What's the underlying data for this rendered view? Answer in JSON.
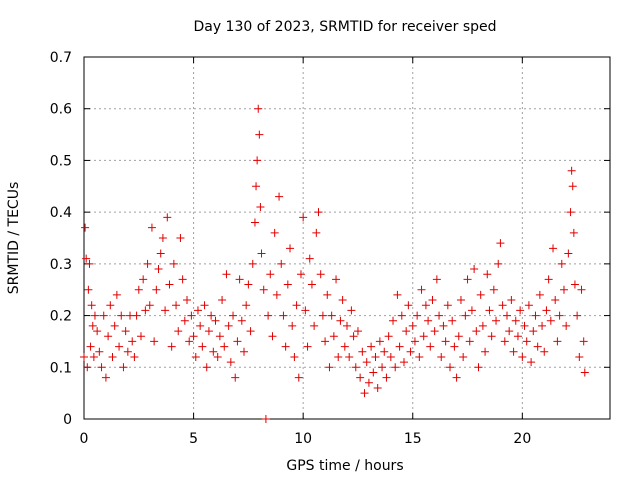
{
  "chart_data": {
    "type": "scatter",
    "title": "Day 130 of 2023, SRMTID for receiver sped",
    "xlabel": "GPS time / hours",
    "ylabel": "SRMTID / TECUs",
    "xlim": [
      0,
      24
    ],
    "ylim": [
      0,
      0.7
    ],
    "xticks": [
      0,
      5,
      10,
      15,
      20
    ],
    "yticks": [
      0,
      0.1,
      0.2,
      0.3,
      0.4,
      0.5,
      0.6,
      0.7
    ],
    "xtick_labels": [
      "0",
      "5",
      "10",
      "15",
      "20"
    ],
    "ytick_labels": [
      "0",
      "0.1",
      "0.2",
      "0.3",
      "0.4",
      "0.5",
      "0.6",
      "0.7"
    ],
    "grid": true,
    "marker": "+",
    "color": "#e00000",
    "series": [
      {
        "name": "SRMTID",
        "points": [
          [
            0.0,
            0.12
          ],
          [
            0.05,
            0.37
          ],
          [
            0.1,
            0.31
          ],
          [
            0.15,
            0.1
          ],
          [
            0.2,
            0.25
          ],
          [
            0.25,
            0.3
          ],
          [
            0.3,
            0.14
          ],
          [
            0.35,
            0.22
          ],
          [
            0.4,
            0.18
          ],
          [
            0.45,
            0.12
          ],
          [
            0.5,
            0.2
          ],
          [
            0.6,
            0.17
          ],
          [
            0.7,
            0.13
          ],
          [
            0.8,
            0.1
          ],
          [
            0.9,
            0.2
          ],
          [
            1.0,
            0.08
          ],
          [
            1.1,
            0.16
          ],
          [
            1.2,
            0.22
          ],
          [
            1.3,
            0.12
          ],
          [
            1.4,
            0.18
          ],
          [
            1.5,
            0.24
          ],
          [
            1.6,
            0.14
          ],
          [
            1.7,
            0.2
          ],
          [
            1.8,
            0.1
          ],
          [
            1.9,
            0.17
          ],
          [
            2.0,
            0.13
          ],
          [
            2.1,
            0.2
          ],
          [
            2.2,
            0.15
          ],
          [
            2.3,
            0.12
          ],
          [
            2.4,
            0.2
          ],
          [
            2.5,
            0.25
          ],
          [
            2.6,
            0.16
          ],
          [
            2.7,
            0.27
          ],
          [
            2.8,
            0.21
          ],
          [
            2.9,
            0.3
          ],
          [
            3.0,
            0.22
          ],
          [
            3.1,
            0.37
          ],
          [
            3.2,
            0.15
          ],
          [
            3.3,
            0.25
          ],
          [
            3.4,
            0.29
          ],
          [
            3.5,
            0.32
          ],
          [
            3.6,
            0.35
          ],
          [
            3.7,
            0.21
          ],
          [
            3.8,
            0.39
          ],
          [
            3.9,
            0.26
          ],
          [
            4.0,
            0.14
          ],
          [
            4.1,
            0.3
          ],
          [
            4.2,
            0.22
          ],
          [
            4.3,
            0.17
          ],
          [
            4.4,
            0.35
          ],
          [
            4.5,
            0.27
          ],
          [
            4.6,
            0.19
          ],
          [
            4.7,
            0.23
          ],
          [
            4.8,
            0.15
          ],
          [
            4.9,
            0.2
          ],
          [
            5.0,
            0.16
          ],
          [
            5.1,
            0.12
          ],
          [
            5.2,
            0.21
          ],
          [
            5.3,
            0.18
          ],
          [
            5.4,
            0.14
          ],
          [
            5.5,
            0.22
          ],
          [
            5.6,
            0.1
          ],
          [
            5.7,
            0.17
          ],
          [
            5.8,
            0.2
          ],
          [
            5.9,
            0.13
          ],
          [
            6.0,
            0.19
          ],
          [
            6.1,
            0.12
          ],
          [
            6.2,
            0.16
          ],
          [
            6.3,
            0.23
          ],
          [
            6.4,
            0.14
          ],
          [
            6.5,
            0.28
          ],
          [
            6.6,
            0.18
          ],
          [
            6.7,
            0.11
          ],
          [
            6.8,
            0.2
          ],
          [
            6.9,
            0.08
          ],
          [
            7.0,
            0.15
          ],
          [
            7.1,
            0.27
          ],
          [
            7.2,
            0.19
          ],
          [
            7.3,
            0.13
          ],
          [
            7.4,
            0.22
          ],
          [
            7.5,
            0.26
          ],
          [
            7.6,
            0.17
          ],
          [
            7.7,
            0.3
          ],
          [
            7.8,
            0.38
          ],
          [
            7.85,
            0.45
          ],
          [
            7.9,
            0.5
          ],
          [
            7.95,
            0.6
          ],
          [
            8.0,
            0.55
          ],
          [
            8.05,
            0.41
          ],
          [
            8.1,
            0.32
          ],
          [
            8.2,
            0.25
          ],
          [
            8.3,
            0.0
          ],
          [
            8.4,
            0.2
          ],
          [
            8.5,
            0.28
          ],
          [
            8.6,
            0.16
          ],
          [
            8.7,
            0.36
          ],
          [
            8.8,
            0.24
          ],
          [
            8.9,
            0.43
          ],
          [
            9.0,
            0.3
          ],
          [
            9.1,
            0.2
          ],
          [
            9.2,
            0.14
          ],
          [
            9.3,
            0.26
          ],
          [
            9.4,
            0.33
          ],
          [
            9.5,
            0.18
          ],
          [
            9.6,
            0.12
          ],
          [
            9.7,
            0.22
          ],
          [
            9.8,
            0.08
          ],
          [
            9.9,
            0.28
          ],
          [
            10.0,
            0.39
          ],
          [
            10.1,
            0.21
          ],
          [
            10.2,
            0.14
          ],
          [
            10.3,
            0.31
          ],
          [
            10.4,
            0.26
          ],
          [
            10.5,
            0.18
          ],
          [
            10.6,
            0.36
          ],
          [
            10.7,
            0.4
          ],
          [
            10.8,
            0.28
          ],
          [
            10.9,
            0.2
          ],
          [
            11.0,
            0.15
          ],
          [
            11.1,
            0.24
          ],
          [
            11.2,
            0.1
          ],
          [
            11.3,
            0.2
          ],
          [
            11.4,
            0.16
          ],
          [
            11.5,
            0.27
          ],
          [
            11.6,
            0.12
          ],
          [
            11.7,
            0.19
          ],
          [
            11.8,
            0.23
          ],
          [
            11.9,
            0.14
          ],
          [
            12.0,
            0.18
          ],
          [
            12.1,
            0.12
          ],
          [
            12.2,
            0.21
          ],
          [
            12.3,
            0.16
          ],
          [
            12.4,
            0.1
          ],
          [
            12.5,
            0.17
          ],
          [
            12.6,
            0.08
          ],
          [
            12.7,
            0.13
          ],
          [
            12.8,
            0.05
          ],
          [
            12.9,
            0.11
          ],
          [
            13.0,
            0.07
          ],
          [
            13.1,
            0.14
          ],
          [
            13.2,
            0.09
          ],
          [
            13.3,
            0.12
          ],
          [
            13.4,
            0.06
          ],
          [
            13.5,
            0.15
          ],
          [
            13.6,
            0.1
          ],
          [
            13.7,
            0.13
          ],
          [
            13.8,
            0.08
          ],
          [
            13.9,
            0.16
          ],
          [
            14.0,
            0.12
          ],
          [
            14.1,
            0.19
          ],
          [
            14.2,
            0.1
          ],
          [
            14.3,
            0.24
          ],
          [
            14.4,
            0.14
          ],
          [
            14.5,
            0.2
          ],
          [
            14.6,
            0.11
          ],
          [
            14.7,
            0.17
          ],
          [
            14.8,
            0.22
          ],
          [
            14.9,
            0.13
          ],
          [
            15.0,
            0.18
          ],
          [
            15.1,
            0.15
          ],
          [
            15.2,
            0.2
          ],
          [
            15.3,
            0.12
          ],
          [
            15.4,
            0.25
          ],
          [
            15.5,
            0.16
          ],
          [
            15.6,
            0.22
          ],
          [
            15.7,
            0.19
          ],
          [
            15.8,
            0.14
          ],
          [
            15.9,
            0.23
          ],
          [
            16.0,
            0.17
          ],
          [
            16.1,
            0.27
          ],
          [
            16.2,
            0.2
          ],
          [
            16.3,
            0.12
          ],
          [
            16.4,
            0.18
          ],
          [
            16.5,
            0.15
          ],
          [
            16.6,
            0.22
          ],
          [
            16.7,
            0.1
          ],
          [
            16.8,
            0.19
          ],
          [
            16.9,
            0.14
          ],
          [
            17.0,
            0.08
          ],
          [
            17.1,
            0.16
          ],
          [
            17.2,
            0.23
          ],
          [
            17.3,
            0.12
          ],
          [
            17.4,
            0.2
          ],
          [
            17.5,
            0.27
          ],
          [
            17.6,
            0.15
          ],
          [
            17.7,
            0.21
          ],
          [
            17.8,
            0.29
          ],
          [
            17.9,
            0.17
          ],
          [
            18.0,
            0.1
          ],
          [
            18.1,
            0.24
          ],
          [
            18.2,
            0.18
          ],
          [
            18.3,
            0.13
          ],
          [
            18.4,
            0.28
          ],
          [
            18.5,
            0.21
          ],
          [
            18.6,
            0.16
          ],
          [
            18.7,
            0.25
          ],
          [
            18.8,
            0.19
          ],
          [
            18.9,
            0.3
          ],
          [
            19.0,
            0.34
          ],
          [
            19.1,
            0.22
          ],
          [
            19.2,
            0.15
          ],
          [
            19.3,
            0.2
          ],
          [
            19.4,
            0.17
          ],
          [
            19.5,
            0.23
          ],
          [
            19.6,
            0.13
          ],
          [
            19.7,
            0.19
          ],
          [
            19.8,
            0.16
          ],
          [
            19.9,
            0.21
          ],
          [
            20.0,
            0.12
          ],
          [
            20.1,
            0.18
          ],
          [
            20.2,
            0.15
          ],
          [
            20.3,
            0.22
          ],
          [
            20.4,
            0.11
          ],
          [
            20.5,
            0.17
          ],
          [
            20.6,
            0.2
          ],
          [
            20.7,
            0.14
          ],
          [
            20.8,
            0.24
          ],
          [
            20.9,
            0.18
          ],
          [
            21.0,
            0.13
          ],
          [
            21.1,
            0.21
          ],
          [
            21.2,
            0.27
          ],
          [
            21.3,
            0.19
          ],
          [
            21.4,
            0.33
          ],
          [
            21.5,
            0.23
          ],
          [
            21.6,
            0.15
          ],
          [
            21.7,
            0.2
          ],
          [
            21.8,
            0.3
          ],
          [
            21.9,
            0.25
          ],
          [
            22.0,
            0.18
          ],
          [
            22.1,
            0.32
          ],
          [
            22.2,
            0.4
          ],
          [
            22.25,
            0.48
          ],
          [
            22.3,
            0.45
          ],
          [
            22.35,
            0.36
          ],
          [
            22.4,
            0.26
          ],
          [
            22.5,
            0.2
          ],
          [
            22.6,
            0.12
          ],
          [
            22.7,
            0.25
          ],
          [
            22.8,
            0.15
          ],
          [
            22.85,
            0.09
          ]
        ]
      }
    ]
  }
}
